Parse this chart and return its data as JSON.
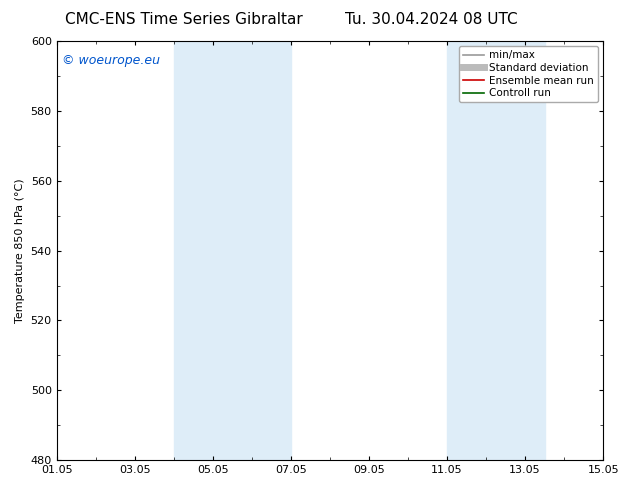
{
  "title_left": "CMC-ENS Time Series Gibraltar",
  "title_right": "Tu. 30.04.2024 08 UTC",
  "ylabel": "Temperature 850 hPa (°C)",
  "ylim": [
    480,
    600
  ],
  "yticks": [
    480,
    500,
    520,
    540,
    560,
    580,
    600
  ],
  "xtick_labels": [
    "01.05",
    "03.05",
    "05.05",
    "07.05",
    "09.05",
    "11.05",
    "13.05",
    "15.05"
  ],
  "xtick_positions": [
    0,
    2,
    4,
    6,
    8,
    10,
    12,
    14
  ],
  "shaded_regions": [
    {
      "x_start": 3,
      "x_end": 6,
      "color": "#deedf8"
    },
    {
      "x_start": 10,
      "x_end": 12.5,
      "color": "#deedf8"
    }
  ],
  "watermark_text": "© woeurope.eu",
  "watermark_color": "#0055cc",
  "legend_entries": [
    {
      "label": "min/max",
      "color": "#999999",
      "lw": 1.2
    },
    {
      "label": "Standard deviation",
      "color": "#bbbbbb",
      "lw": 5
    },
    {
      "label": "Ensemble mean run",
      "color": "#cc0000",
      "lw": 1.2
    },
    {
      "label": "Controll run",
      "color": "#006600",
      "lw": 1.2
    }
  ],
  "bg_color": "#ffffff",
  "plot_bg_color": "#ffffff",
  "border_color": "#000000",
  "title_fontsize": 11,
  "axis_fontsize": 8,
  "tick_fontsize": 8,
  "watermark_fontsize": 9
}
